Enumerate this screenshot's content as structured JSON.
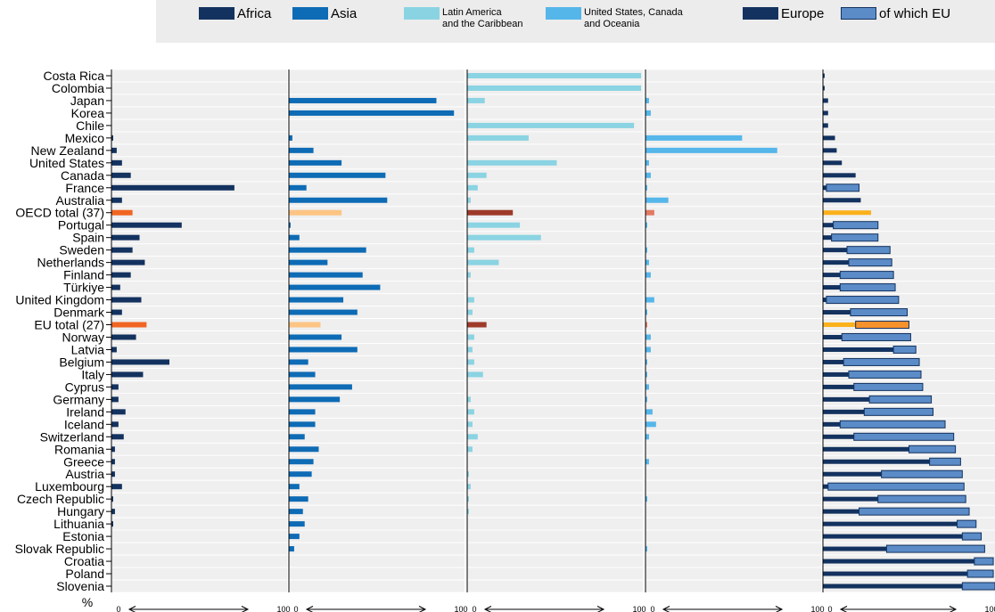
{
  "legend": [
    {
      "name": "Africa",
      "color": "#13325f",
      "type": "solid"
    },
    {
      "name": "Asia",
      "color": "#0e6bb5",
      "type": "solid"
    },
    {
      "name": "Latin America\nand the Caribbean",
      "color": "#8ad3e3",
      "type": "solid"
    },
    {
      "name": "United States, Canada\nand Oceania",
      "color": "#55b6ea",
      "type": "solid"
    },
    {
      "name": "Europe",
      "color": "#13325f",
      "type": "solid"
    },
    {
      "name": "of which EU",
      "color": "#5b8cc8",
      "type": "outlined"
    }
  ],
  "ylabel": "%",
  "axis_min_label": "0",
  "axis_max_label": "100",
  "chart_data": {
    "type": "bar",
    "orientation": "horizontal",
    "layout": "small-multiples",
    "xlim": [
      0,
      100
    ],
    "grid": true,
    "legend_position": "top",
    "colors": {
      "africa": "#13325f",
      "asia": "#0e6bb5",
      "latam": "#8ad3e3",
      "usco": "#55b6ea",
      "europe": "#13325f",
      "eu": "#5b8cc8",
      "hl_africa": "#f06522",
      "hl_asia": "#fdc483",
      "hl_latam": "#9e3a2a",
      "hl_usco": "#e27a63",
      "hl_europe": "#fbb11b",
      "hl_eu": "#f6922c"
    },
    "highlight_categories": [
      "OECD total (37)",
      "EU total (27)"
    ],
    "categories": [
      "Costa Rica",
      "Colombia",
      "Japan",
      "Korea",
      "Chile",
      "Mexico",
      "New Zealand",
      "United States",
      "Canada",
      "France",
      "Australia",
      "OECD total (37)",
      "Portugal",
      "Spain",
      "Sweden",
      "Netherlands",
      "Finland",
      "Türkiye",
      "United Kingdom",
      "Denmark",
      "EU total (27)",
      "Norway",
      "Latvia",
      "Belgium",
      "Italy",
      "Cyprus",
      "Germany",
      "Ireland",
      "Iceland",
      "Switzerland",
      "Romania",
      "Greece",
      "Austria",
      "Luxembourg",
      "Czech Republic",
      "Hungary",
      "Lithuania",
      "Estonia",
      "Slovak Republic",
      "Croatia",
      "Poland",
      "Slovenia"
    ],
    "series": [
      {
        "name": "Africa",
        "values": [
          0,
          0,
          0,
          0,
          0,
          1,
          3,
          6,
          11,
          70,
          6,
          12,
          40,
          16,
          12,
          19,
          11,
          5,
          17,
          6,
          20,
          14,
          3,
          33,
          18,
          4,
          4,
          8,
          4,
          7,
          2,
          2,
          2,
          6,
          1,
          2,
          1,
          0,
          0,
          0,
          0,
          0
        ]
      },
      {
        "name": "Asia",
        "values": [
          0,
          0,
          84,
          94,
          0,
          2,
          14,
          30,
          55,
          10,
          56,
          30,
          1,
          6,
          44,
          22,
          42,
          52,
          31,
          39,
          18,
          30,
          39,
          11,
          15,
          36,
          29,
          15,
          15,
          9,
          17,
          14,
          13,
          6,
          11,
          8,
          9,
          6,
          3,
          0,
          0,
          0
        ]
      },
      {
        "name": "Latin America and the Caribbean",
        "values": [
          99,
          99,
          10,
          0,
          95,
          35,
          0,
          51,
          11,
          6,
          2,
          26,
          30,
          42,
          4,
          18,
          2,
          0,
          4,
          3,
          11,
          4,
          3,
          4,
          9,
          0,
          2,
          4,
          3,
          6,
          3,
          0,
          1,
          2,
          1,
          1,
          0,
          0,
          0,
          0,
          0,
          0
        ]
      },
      {
        "name": "United States, Canada and Oceania",
        "values": [
          0,
          0,
          2,
          3,
          0,
          55,
          75,
          2,
          3,
          1,
          13,
          5,
          1,
          0,
          1,
          2,
          3,
          0,
          5,
          1,
          1,
          3,
          3,
          1,
          1,
          2,
          1,
          4,
          6,
          2,
          0,
          2,
          0,
          0,
          1,
          0,
          0,
          0,
          1,
          0,
          0,
          0
        ]
      },
      {
        "name": "Europe",
        "values": [
          1,
          1,
          3,
          3,
          3,
          7,
          8,
          11,
          19,
          21,
          22,
          28,
          32,
          32,
          39,
          40,
          41,
          42,
          44,
          49,
          50,
          51,
          54,
          56,
          57,
          58,
          63,
          64,
          71,
          76,
          77,
          80,
          81,
          82,
          83,
          85,
          89,
          92,
          94,
          99,
          99,
          100
        ]
      },
      {
        "name": "of which EU",
        "values": [
          0,
          0,
          0,
          0,
          0,
          0,
          0,
          0,
          0,
          19,
          0,
          0,
          26,
          27,
          25,
          25,
          31,
          32,
          42,
          33,
          31,
          40,
          13,
          44,
          42,
          40,
          36,
          40,
          61,
          58,
          27,
          18,
          47,
          79,
          51,
          64,
          11,
          11,
          57,
          11,
          15,
          19
        ]
      }
    ]
  }
}
